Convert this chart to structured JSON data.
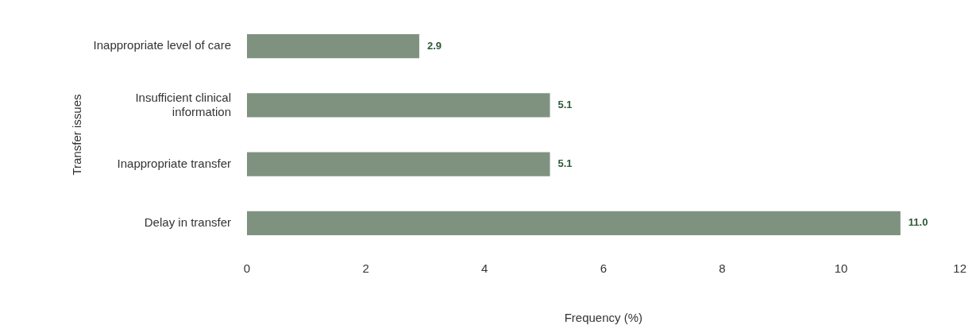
{
  "chart_data": {
    "type": "bar",
    "orientation": "horizontal",
    "categories": [
      "Inappropriate level of care",
      "Insufficient clinical information",
      "Inappropriate transfer",
      "Delay in transfer"
    ],
    "values": [
      2.9,
      5.1,
      5.1,
      11.0
    ],
    "value_labels": [
      "2.9",
      "5.1",
      "5.1",
      "11.0"
    ],
    "color": "#7f9280",
    "xlabel": "Frequency (%)",
    "ylabel": "Transfer issues",
    "xlim": [
      0,
      12
    ],
    "xticks": [
      0,
      2,
      4,
      6,
      8,
      10,
      12
    ],
    "grid": false,
    "legend": false
  }
}
